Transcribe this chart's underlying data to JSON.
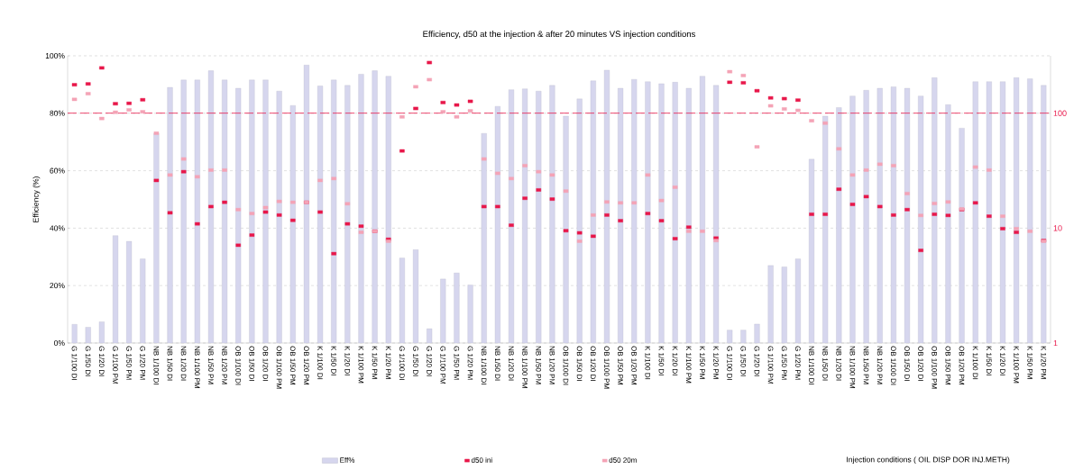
{
  "chart_data": {
    "type": "bar",
    "title": "Efficiency, d50 at the injection & after 20 minutes VS injection conditions",
    "annotations": [
      "Injection conditions ( OIL DISP DOR INJ.METH)"
    ],
    "ylabel": "Efficiency (%)",
    "categories": [
      "G 1/100 DI",
      "G 1/50 DI",
      "G 1/20 DI",
      "G 1/100 PM",
      "G 1/50 PM",
      "G 1/20 PM",
      "NB 1/100 DI",
      "NB 1/50 DI",
      "NB 1/20 DI",
      "NB 1/100 PM",
      "NB 1/50 PM",
      "NB 1/20 PM",
      "OB 1/100 DI",
      "OB 1/50 DI",
      "OB 1/20 DI",
      "OB 1/100 PM",
      "OB 1/50 PM",
      "OB 1/20 PM",
      "K 1/100 DI",
      "K 1/50 DI",
      "K 1/20 DI",
      "K 1/100 PM",
      "K 1/50 PM",
      "K 1/20 PM",
      "G 1/100 DI",
      "G 1/50 DI",
      "G 1/20 DI",
      "G 1/100 PM",
      "G 1/50 PM",
      "G 1/20 PM",
      "NB 1/100 DI",
      "NB 1/50 DI",
      "NB 1/20 DI",
      "NB 1/100 PM",
      "NB 1/50 PM",
      "NB 1/20 PM",
      "OB 1/100 DI",
      "OB 1/50 DI",
      "OB 1/20 DI",
      "OB 1/100 PM",
      "OB 1/50 PM",
      "OB 1/20 PM",
      "K 1/100 DI",
      "K 1/50 DI",
      "K 1/20 DI",
      "K 1/100 PM",
      "K 1/50 PM",
      "K 1/20 PM",
      "G 1/100 DI",
      "G 1/50 DI",
      "G 1/20 DI",
      "G 1/100 PM",
      "G 1/50 PM",
      "G 1/20 PM",
      "NB 1/100 DI",
      "NB 1/50 DI",
      "NB 1/20 DI",
      "NB 1/100 PM",
      "NB 1/50 PM",
      "NB 1/20 PM",
      "OB 1/100 DI",
      "OB 1/50 DI",
      "OB 1/20 DI",
      "OB 1/100 PM",
      "OB 1/50 PM",
      "OB 1/20 PM",
      "K 1/100 DI",
      "K 1/50 DI",
      "K 1/20 DI",
      "K 1/100 PM",
      "K 1/50 PM",
      "K 1/20 PM"
    ],
    "series": [
      {
        "name": "Eff%",
        "color": "#d6d6ee",
        "values": [
          6.5,
          5.5,
          7.4,
          37.4,
          35.4,
          29.3,
          73,
          89,
          91.6,
          91.6,
          94.8,
          91.6,
          88.7,
          91.6,
          91.6,
          87.7,
          82.7,
          96.8,
          89.5,
          91.6,
          89.7,
          93.6,
          94.8,
          92.9,
          29.6,
          32.5,
          5,
          22.3,
          24.4,
          20.2,
          73,
          82.4,
          88.2,
          88.5,
          87.7,
          89.7,
          79,
          85,
          91.3,
          95,
          88.7,
          91.8,
          91,
          90.3,
          90.8,
          88.7,
          92.9,
          89.7,
          4.5,
          4.5,
          6.6,
          27,
          26.5,
          29.3,
          64,
          79,
          82,
          86,
          88,
          88.7,
          89.2,
          88.7,
          86,
          92.4,
          83,
          74.8,
          91,
          91,
          91,
          92.4,
          92,
          89.7
        ]
      },
      {
        "name": "d50 ini",
        "type": "scatter",
        "axis": "y2",
        "color": "#e8174a",
        "values": [
          177,
          180,
          248,
          121,
          122,
          131,
          26,
          13.6,
          31,
          10.9,
          15.4,
          16.8,
          7.1,
          8.7,
          13.8,
          13,
          11.7,
          16.8,
          13.8,
          6,
          10.9,
          10.4,
          9.4,
          8,
          47,
          110,
          276,
          124,
          118,
          127,
          15.4,
          15.4,
          10.6,
          18.2,
          21.5,
          17.9,
          9.5,
          9.1,
          8.5,
          13,
          11.6,
          null,
          13.4,
          11.6,
          8.1,
          10.2,
          null,
          8.2,
          186,
          184,
          157,
          136,
          134,
          130,
          13.2,
          13.2,
          21.8,
          16.1,
          18.8,
          15.4,
          13,
          14.5,
          6.4,
          13.2,
          12.9,
          14.5,
          16.6,
          12.7,
          9.9,
          9.2,
          null,
          7.8
        ]
      },
      {
        "name": "d50 20m",
        "type": "scatter",
        "axis": "y2",
        "color": "#f4a3b6",
        "values": [
          132,
          148,
          90,
          102,
          107,
          103,
          67,
          29,
          40,
          28,
          32,
          32,
          14.5,
          13.4,
          15.1,
          17.1,
          16.8,
          16.8,
          26,
          27,
          16.3,
          9.2,
          9.4,
          7.7,
          93,
          170,
          196,
          103,
          93,
          105,
          40,
          30,
          27,
          35,
          31,
          29,
          21,
          7.7,
          13,
          16.9,
          16.6,
          16.6,
          29,
          17.4,
          22.7,
          9.4,
          9.4,
          7.8,
          230,
          213,
          51,
          116,
          109,
          106,
          86,
          82,
          49,
          29,
          32,
          36,
          35,
          20,
          12.9,
          16.4,
          16.9,
          14.7,
          34,
          32,
          12.7,
          9.9,
          9.4,
          7.7
        ]
      }
    ],
    "ylim": [
      0,
      100
    ],
    "yticks": [
      {
        "value": 0,
        "label": "0%"
      },
      {
        "value": 20,
        "label": "20%"
      },
      {
        "value": 40,
        "label": "40%"
      },
      {
        "value": 60,
        "label": "60%"
      },
      {
        "value": 80,
        "label": "80%"
      },
      {
        "value": 100,
        "label": "100%"
      }
    ],
    "y2lim": [
      1,
      316
    ],
    "y2ticks": [
      1,
      10,
      100
    ],
    "log": "y2",
    "ref_lines": [
      {
        "axis": "y2",
        "value": 100,
        "color": "#e8174a",
        "line_style": "dashed"
      }
    ],
    "grid": "y",
    "legend": "bottom"
  }
}
